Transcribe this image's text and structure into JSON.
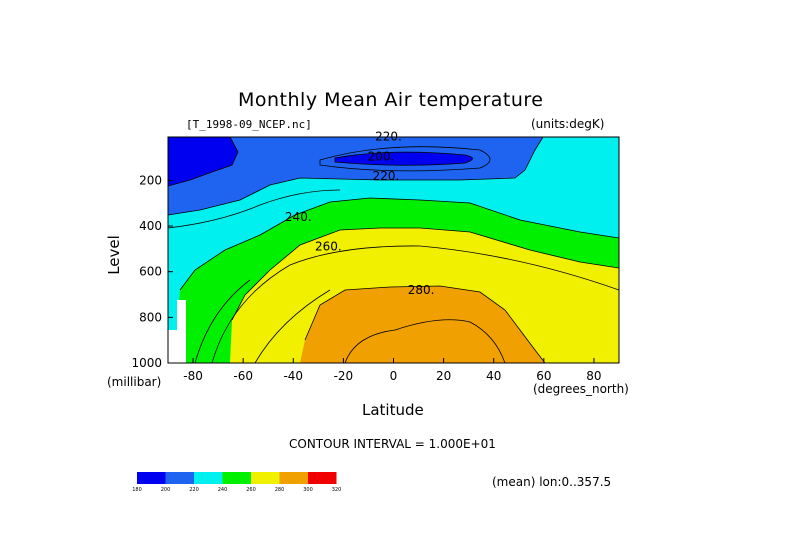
{
  "title": "Monthly Mean Air temperature",
  "file_label": "[T_1998-09_NCEP.nc]",
  "units_label": "(units:degK)",
  "footer": "CONTOUR INTERVAL = 1.000E+01",
  "mean_label": "(mean) lon:0..357.5",
  "chart_data": {
    "type": "contour",
    "xlabel": "Latitude",
    "xunits": "(degrees_north)",
    "ylabel": "Level",
    "yunits": "(millibar)",
    "xlim": [
      -90,
      90
    ],
    "ylim": [
      1000,
      10
    ],
    "xticks": [
      -80,
      -60,
      -40,
      -20,
      0,
      20,
      40,
      60,
      80
    ],
    "yticks": [
      200,
      400,
      600,
      800,
      1000
    ],
    "contour_interval": 10,
    "contour_labels": [
      {
        "value": "200.",
        "x": -5,
        "y": 95
      },
      {
        "value": "220.",
        "x": -2,
        "y": 7
      },
      {
        "value": "220.",
        "x": -3,
        "y": 180
      },
      {
        "value": "240.",
        "x": -38,
        "y": 360
      },
      {
        "value": "260.",
        "x": -26,
        "y": 490
      },
      {
        "value": "280.",
        "x": 11,
        "y": 680
      }
    ],
    "colorbar": {
      "levels": [
        "180",
        "200",
        "220",
        "240",
        "260",
        "280",
        "300",
        "320"
      ],
      "colors": [
        "#0000f0",
        "#1e64f0",
        "#00f0f0",
        "#00f000",
        "#f0f000",
        "#f0a000",
        "#f00000"
      ]
    }
  }
}
